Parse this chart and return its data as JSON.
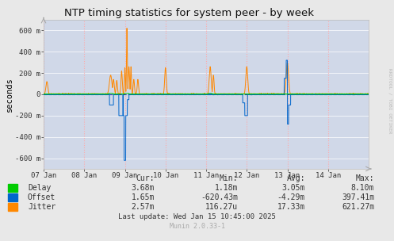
{
  "title": "NTP timing statistics for system peer - by week",
  "ylabel": "seconds",
  "background_color": "#e8e8e8",
  "plot_bg_color": "#d0d8e8",
  "grid_color_h": "#ffffff",
  "grid_color_v": "#ffaaaa",
  "ylim": [
    -700,
    700
  ],
  "yticks": [
    -600,
    -400,
    -200,
    0,
    200,
    400,
    600
  ],
  "ytick_labels": [
    "-600 m",
    "-400 m",
    "-200 m",
    "0",
    "200 m",
    "400 m",
    "600 m"
  ],
  "xtick_labels": [
    "07 Jan",
    "08 Jan",
    "09 Jan",
    "10 Jan",
    "11 Jan",
    "12 Jan",
    "13 Jan",
    "14 Jan"
  ],
  "delay_color": "#00cc00",
  "offset_color": "#0066cc",
  "jitter_color": "#ff8800",
  "zero_line_color": "#0000bb",
  "watermark": "RRDTOOL / TOBI OETIKER",
  "legend_labels": [
    "Delay",
    "Offset",
    "Jitter"
  ],
  "legend_colors": [
    "#00cc00",
    "#0066cc",
    "#ff8800"
  ],
  "cur_values": [
    "3.68m",
    "1.65m",
    "2.57m"
  ],
  "min_values": [
    "1.18m",
    "-620.43m",
    "116.27u"
  ],
  "avg_values": [
    "3.05m",
    "-4.29m",
    "17.33m"
  ],
  "max_values": [
    "8.10m",
    "397.41m",
    "621.27m"
  ],
  "last_update": "Last update: Wed Jan 15 10:45:00 2025",
  "munin_version": "Munin 2.0.33-1"
}
